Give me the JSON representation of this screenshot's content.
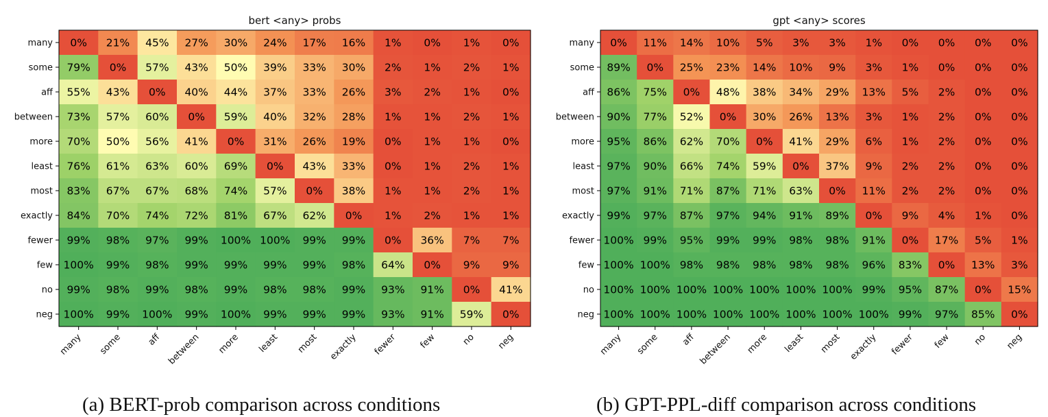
{
  "chart_data": [
    {
      "type": "heatmap",
      "title": "bert <any> probs",
      "caption": "(a) BERT-prob comparison across conditions",
      "rows": [
        "many",
        "some",
        "aff",
        "between",
        "more",
        "least",
        "most",
        "exactly",
        "fewer",
        "few",
        "no",
        "neg"
      ],
      "cols": [
        "many",
        "some",
        "aff",
        "between",
        "more",
        "least",
        "most",
        "exactly",
        "fewer",
        "few",
        "no",
        "neg"
      ],
      "values": [
        [
          0,
          21,
          45,
          27,
          30,
          24,
          17,
          16,
          1,
          0,
          1,
          0
        ],
        [
          79,
          0,
          57,
          43,
          50,
          39,
          33,
          30,
          2,
          1,
          2,
          1
        ],
        [
          55,
          43,
          0,
          40,
          44,
          37,
          33,
          26,
          3,
          2,
          1,
          0
        ],
        [
          73,
          57,
          60,
          0,
          59,
          40,
          32,
          28,
          1,
          1,
          2,
          1
        ],
        [
          70,
          50,
          56,
          41,
          0,
          31,
          26,
          19,
          0,
          1,
          1,
          0
        ],
        [
          76,
          61,
          63,
          60,
          69,
          0,
          43,
          33,
          0,
          1,
          2,
          1
        ],
        [
          83,
          67,
          67,
          68,
          74,
          57,
          0,
          38,
          1,
          1,
          2,
          1
        ],
        [
          84,
          70,
          74,
          72,
          81,
          67,
          62,
          0,
          1,
          2,
          1,
          1
        ],
        [
          99,
          98,
          97,
          99,
          100,
          100,
          99,
          99,
          0,
          36,
          7,
          7
        ],
        [
          100,
          99,
          98,
          99,
          99,
          99,
          99,
          98,
          64,
          0,
          9,
          9
        ],
        [
          99,
          98,
          99,
          98,
          99,
          98,
          98,
          99,
          93,
          91,
          0,
          41
        ],
        [
          100,
          99,
          100,
          99,
          100,
          99,
          99,
          99,
          93,
          91,
          59,
          0
        ]
      ],
      "value_suffix": "%",
      "colormap": "RdYlGn",
      "vmin": 0,
      "vmax": 100
    },
    {
      "type": "heatmap",
      "title": "gpt <any> scores",
      "caption": "(b) GPT-PPL-diff comparison across conditions",
      "rows": [
        "many",
        "some",
        "aff",
        "between",
        "more",
        "least",
        "most",
        "exactly",
        "fewer",
        "few",
        "no",
        "neg"
      ],
      "cols": [
        "many",
        "some",
        "aff",
        "between",
        "more",
        "least",
        "most",
        "exactly",
        "fewer",
        "few",
        "no",
        "neg"
      ],
      "values": [
        [
          0,
          11,
          14,
          10,
          5,
          3,
          3,
          1,
          0,
          0,
          0,
          0
        ],
        [
          89,
          0,
          25,
          23,
          14,
          10,
          9,
          3,
          1,
          0,
          0,
          0
        ],
        [
          86,
          75,
          0,
          48,
          38,
          34,
          29,
          13,
          5,
          2,
          0,
          0
        ],
        [
          90,
          77,
          52,
          0,
          30,
          26,
          13,
          3,
          1,
          2,
          0,
          0
        ],
        [
          95,
          86,
          62,
          70,
          0,
          41,
          29,
          6,
          1,
          2,
          0,
          0
        ],
        [
          97,
          90,
          66,
          74,
          59,
          0,
          37,
          9,
          2,
          2,
          0,
          0
        ],
        [
          97,
          91,
          71,
          87,
          71,
          63,
          0,
          11,
          2,
          2,
          0,
          0
        ],
        [
          99,
          97,
          87,
          97,
          94,
          91,
          89,
          0,
          9,
          4,
          1,
          0
        ],
        [
          100,
          99,
          95,
          99,
          99,
          98,
          98,
          91,
          0,
          17,
          5,
          1
        ],
        [
          100,
          100,
          98,
          98,
          98,
          98,
          98,
          96,
          83,
          0,
          13,
          3
        ],
        [
          100,
          100,
          100,
          100,
          100,
          100,
          100,
          99,
          95,
          87,
          0,
          15
        ],
        [
          100,
          100,
          100,
          100,
          100,
          100,
          100,
          100,
          99,
          97,
          85,
          0
        ]
      ],
      "value_suffix": "%",
      "colormap": "RdYlGn",
      "vmin": 0,
      "vmax": 100
    }
  ]
}
